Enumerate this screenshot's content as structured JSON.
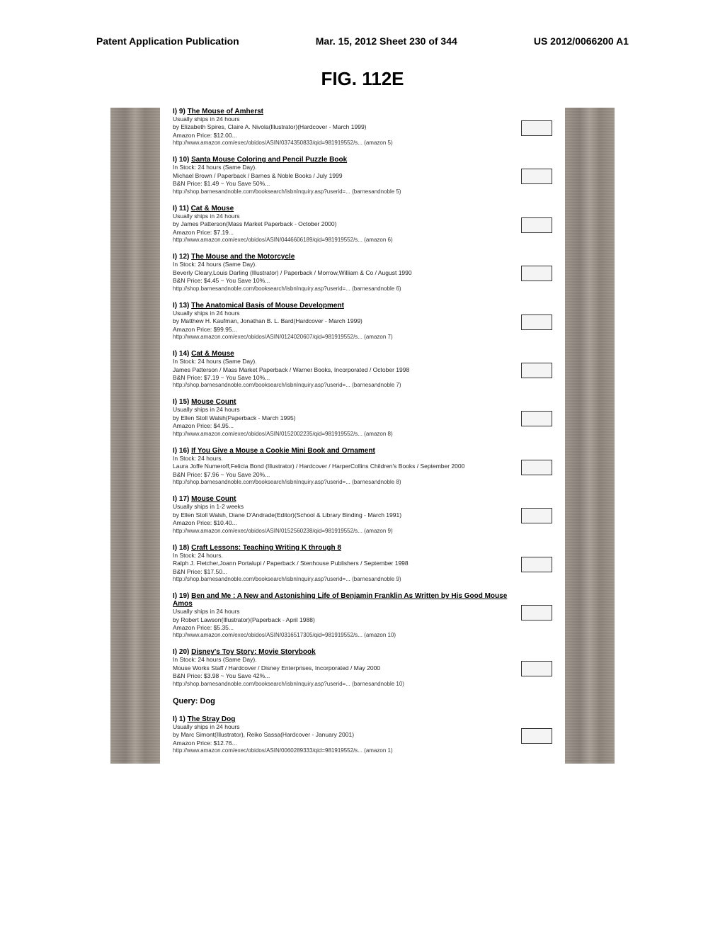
{
  "header": {
    "left": "Patent Application Publication",
    "center": "Mar. 15, 2012  Sheet 230 of 344",
    "right": "US 2012/0066200 A1"
  },
  "figure_title": "FIG. 112E",
  "query_header": "Query: Dog",
  "items": [
    {
      "idx": "I) 9)",
      "title": "The Mouse of Amherst",
      "ship": "Usually ships in 24 hours",
      "by": "by Elizabeth Spires, Claire A. Nivola(Illustrator)(Hardcover - March 1999)",
      "price": "Amazon Price: $12.00...",
      "url": "http://www.amazon.com/exec/obidos/ASIN/0374350833/qid=981919552/s...   (amazon  5)"
    },
    {
      "idx": "I) 10)",
      "title": "Santa Mouse Coloring and Pencil Puzzle Book",
      "ship": "In Stock: 24 hours (Same Day).",
      "by": "Michael Brown / Paperback / Barnes & Noble Books / July 1999",
      "price": "B&N Price: $1.49 ~ You Save 50%...",
      "url": "http://shop.barnesandnoble.com/booksearch/isbnInquiry.asp?userid=...   (barnesandnoble  5)"
    },
    {
      "idx": "I) 11)",
      "title": "Cat & Mouse",
      "ship": "Usually ships in 24 hours",
      "by": "by James Patterson(Mass Market Paperback - October 2000)",
      "price": "Amazon Price: $7.19...",
      "url": "http://www.amazon.com/exec/obidos/ASIN/0446606189/qid=981919552/s...   (amazon  6)"
    },
    {
      "idx": "I) 12)",
      "title": "The Mouse and the Motorcycle",
      "ship": "In Stock: 24 hours (Same Day).",
      "by": "Beverly Cleary,Louis Darling (Illustrator) / Paperback / Morrow,William & Co / August 1990",
      "price": "B&N Price: $4.45 ~ You Save 10%...",
      "url": "http://shop.barnesandnoble.com/booksearch/isbnInquiry.asp?userid=...   (barnesandnoble  6)"
    },
    {
      "idx": "I) 13)",
      "title": "The Anatomical Basis of Mouse Development",
      "ship": "Usually ships in 24 hours",
      "by": "by Matthew H. Kaufman, Jonathan B. L. Bard(Hardcover - March 1999)",
      "price": "Amazon Price: $99.95...",
      "url": "http://www.amazon.com/exec/obidos/ASIN/0124020607/qid=981919552/s...   (amazon  7)"
    },
    {
      "idx": "I) 14)",
      "title": "Cat & Mouse",
      "ship": "In Stock: 24 hours (Same Day).",
      "by": "James Patterson / Mass Market Paperback / Warner Books, Incorporated / October 1998",
      "price": "B&N Price: $7.19 ~ You Save 10%...",
      "url": "http://shop.barnesandnoble.com/booksearch/isbnInquiry.asp?userid=...   (barnesandnoble  7)"
    },
    {
      "idx": "I) 15)",
      "title": "Mouse Count",
      "ship": "Usually ships in 24 hours",
      "by": "by Ellen Stoll Walsh(Paperback - March 1995)",
      "price": "Amazon Price: $4.95...",
      "url": "http://www.amazon.com/exec/obidos/ASIN/0152002235/qid=981919552/s...   (amazon  8)"
    },
    {
      "idx": "I) 16)",
      "title": "If You Give a Mouse a Cookie Mini Book and Ornament",
      "ship": "In Stock: 24 hours.",
      "by": "Laura Joffe Numeroff,Felicia Bond (Illustrator) / Hardcover / HarperCollins Children's Books / September 2000",
      "price": "B&N Price: $7.96 ~ You Save 20%...",
      "url": "http://shop.barnesandnoble.com/booksearch/isbnInquiry.asp?userid=...   (barnesandnoble  8)"
    },
    {
      "idx": "I) 17)",
      "title": "Mouse Count",
      "ship": "Usually ships in 1-2 weeks",
      "by": "by Ellen Stoll Walsh, Diane D'Andrade(Editor)(School & Library Binding - March 1991)",
      "price": "Amazon Price: $10.40...",
      "url": "http://www.amazon.com/exec/obidos/ASIN/0152560238/qid=981919552/s...   (amazon  9)"
    },
    {
      "idx": "I) 18)",
      "title": "Craft Lessons: Teaching Writing K through 8",
      "ship": "In Stock: 24 hours.",
      "by": "Ralph J. Fletcher,Joann Portalupi / Paperback / Stenhouse Publishers / September 1998",
      "price": "B&N Price: $17.50...",
      "url": "http://shop.barnesandnoble.com/booksearch/isbnInquiry.asp?userid=...   (barnesandnoble  9)"
    },
    {
      "idx": "I) 19)",
      "title": "Ben and Me : A New and Astonishing Life of Benjamin Franklin As Written by His Good Mouse Amos",
      "ship": "Usually ships in 24 hours",
      "by": "by Robert Lawson(Illustrator)(Paperback - April 1988)",
      "price": "Amazon Price: $5.35...",
      "url": "http://www.amazon.com/exec/obidos/ASIN/0316517305/qid=981919552/s...   (amazon  10)"
    },
    {
      "idx": "I) 20)",
      "title": "Disney's Toy Story: Movie Storybook",
      "ship": "In Stock: 24 hours (Same Day).",
      "by": "Mouse Works Staff / Hardcover / Disney Enterprises, Incorporated / May 2000",
      "price": "B&N Price: $3.98 ~ You Save 42%...",
      "url": "http://shop.barnesandnoble.com/booksearch/isbnInquiry.asp?userid=...   (barnesandnoble  10)"
    }
  ],
  "dog_items": [
    {
      "idx": "I) 1)",
      "title": "The Stray Dog",
      "ship": "Usually ships in 24 hours",
      "by": "by Marc Simont(Illustrator), Reiko Sassa(Hardcover - January 2001)",
      "price": "Amazon Price: $12.76...",
      "url": "http://www.amazon.com/exec/obidos/ASIN/0060289333/qid=981919552/s...   (amazon  1)"
    }
  ]
}
